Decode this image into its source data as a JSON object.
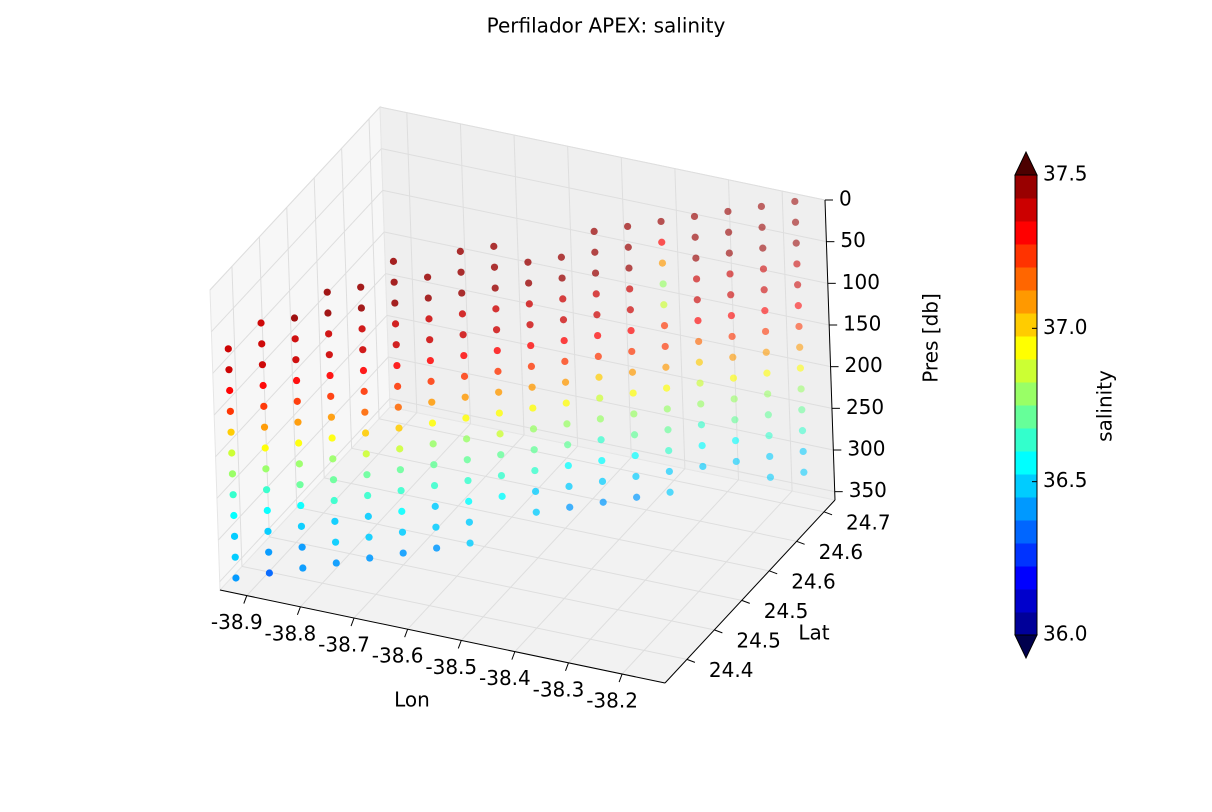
{
  "chart_data": {
    "type": "scatter3d",
    "title": "Perfilador APEX: salinity",
    "x_label": "Lon",
    "y_label": "Lat",
    "z_label": "Pres [db]",
    "colorbar_label": "salinity",
    "cmap": "jet",
    "clim": [
      36.0,
      37.5
    ],
    "levels": 20,
    "xlim": [
      -38.95,
      -38.12
    ],
    "xticks": [
      -38.9,
      -38.8,
      -38.7,
      -38.6,
      -38.5,
      -38.4,
      -38.3,
      -38.2
    ],
    "ylim": [
      24.36,
      24.67
    ],
    "yticks": [
      24.4,
      {
        "value": 24.45,
        "label": "24.5"
      },
      24.5,
      {
        "value": 24.55,
        "label": "24.6"
      },
      24.6,
      {
        "value": 24.65,
        "label": "24.7"
      }
    ],
    "zlim": [
      0,
      360
    ],
    "z_inverted": true,
    "zticks": [
      0,
      50,
      100,
      150,
      200,
      250,
      300,
      350
    ],
    "cticks": [
      {
        "value": 36.0,
        "label": "36.0"
      },
      36.5,
      {
        "value": 37.0,
        "label": "37.0"
      },
      37.5
    ],
    "grid": true,
    "pressure": [
      0,
      25,
      50,
      75,
      100,
      125,
      150,
      175,
      200,
      225,
      250,
      275,
      300,
      325,
      350
    ],
    "profiles": [
      {
        "lon": -38.93,
        "lat": 24.37,
        "salinity": [
          null,
          null,
          null,
          37.4,
          37.38,
          37.3,
          37.2,
          37.05,
          36.9,
          36.75,
          36.65,
          36.55,
          36.5,
          36.45,
          36.4
        ]
      },
      {
        "lon": -38.885,
        "lat": 24.387,
        "salinity": [
          null,
          null,
          37.42,
          37.4,
          37.36,
          37.3,
          37.22,
          37.08,
          36.92,
          36.78,
          36.66,
          36.56,
          36.48,
          36.42,
          36.35
        ]
      },
      {
        "lon": -38.84,
        "lat": 24.404,
        "salinity": [
          null,
          null,
          37.43,
          37.41,
          37.37,
          37.32,
          37.25,
          37.1,
          36.95,
          36.8,
          36.68,
          36.58,
          36.5,
          36.44,
          36.4
        ]
      },
      {
        "lon": -38.795,
        "lat": 24.421,
        "salinity": [
          null,
          37.45,
          37.44,
          37.42,
          37.38,
          37.33,
          37.26,
          37.12,
          36.96,
          36.82,
          36.7,
          36.6,
          36.52,
          36.46,
          36.42
        ]
      },
      {
        "lon": -38.75,
        "lat": 24.438,
        "salinity": [
          null,
          37.45,
          37.43,
          37.41,
          37.38,
          37.33,
          37.26,
          37.14,
          36.98,
          36.84,
          36.72,
          36.6,
          36.52,
          36.45,
          36.4
        ]
      },
      {
        "lon": -38.705,
        "lat": 24.455,
        "salinity": [
          37.48,
          37.46,
          37.44,
          37.42,
          37.38,
          37.34,
          37.27,
          37.15,
          37.0,
          36.86,
          36.74,
          36.62,
          36.54,
          36.47,
          36.42
        ]
      },
      {
        "lon": -38.66,
        "lat": 24.472,
        "salinity": [
          null,
          37.46,
          37.44,
          37.41,
          37.37,
          37.32,
          37.24,
          37.1,
          36.95,
          36.82,
          36.7,
          36.6,
          36.52,
          36.46,
          36.43
        ]
      },
      {
        "lon": -38.615,
        "lat": 24.489,
        "salinity": [
          37.5,
          37.48,
          37.45,
          37.42,
          37.38,
          37.32,
          37.22,
          37.06,
          36.92,
          36.8,
          36.7,
          36.62,
          36.55,
          36.5,
          36.46
        ]
      },
      {
        "lon": -38.57,
        "lat": 24.506,
        "salinity": [
          37.5,
          37.47,
          37.44,
          37.42,
          37.39,
          37.34,
          37.26,
          37.12,
          36.96,
          36.84,
          36.72,
          36.62,
          36.55,
          null,
          null
        ]
      },
      {
        "lon": -38.525,
        "lat": 24.523,
        "salinity": [
          null,
          37.46,
          37.44,
          37.42,
          37.38,
          37.33,
          37.25,
          37.1,
          36.95,
          36.82,
          36.7,
          36.6,
          36.52,
          36.46,
          null
        ]
      },
      {
        "lon": -38.48,
        "lat": 24.54,
        "salinity": [
          null,
          37.45,
          37.43,
          37.4,
          37.36,
          37.3,
          37.2,
          37.06,
          36.92,
          36.8,
          36.68,
          36.58,
          36.5,
          36.44,
          null
        ]
      },
      {
        "lon": -38.435,
        "lat": 24.557,
        "salinity": [
          37.48,
          37.46,
          37.43,
          37.4,
          37.36,
          37.3,
          37.2,
          37.05,
          36.9,
          36.78,
          36.66,
          36.56,
          36.48,
          36.42,
          null
        ]
      },
      {
        "lon": -38.39,
        "lat": 24.574,
        "salinity": [
          37.49,
          37.47,
          37.44,
          37.41,
          37.37,
          37.31,
          37.22,
          37.08,
          36.93,
          36.8,
          36.68,
          36.58,
          36.5,
          36.44,
          null
        ]
      },
      {
        "lon": -38.345,
        "lat": 24.591,
        "salinity": [
          37.5,
          37.3,
          37.1,
          36.8,
          36.9,
          37.2,
          37.25,
          37.1,
          36.95,
          36.82,
          36.7,
          36.6,
          36.52,
          36.46,
          null
        ]
      },
      {
        "lon": -38.3,
        "lat": 24.608,
        "salinity": [
          37.49,
          37.46,
          37.43,
          37.4,
          37.35,
          37.28,
          37.18,
          37.04,
          36.9,
          36.78,
          36.66,
          36.56,
          36.48,
          null,
          null
        ]
      },
      {
        "lon": -38.255,
        "lat": 24.625,
        "salinity": [
          37.48,
          37.46,
          37.43,
          37.4,
          37.36,
          37.3,
          37.2,
          37.06,
          36.92,
          36.8,
          36.68,
          36.58,
          36.5,
          null,
          null
        ]
      },
      {
        "lon": -38.21,
        "lat": 24.642,
        "salinity": [
          37.49,
          37.46,
          37.44,
          37.41,
          37.37,
          37.31,
          37.22,
          37.08,
          36.94,
          36.82,
          36.7,
          36.6,
          36.52,
          36.46,
          null
        ]
      },
      {
        "lon": -38.165,
        "lat": 24.659,
        "salinity": [
          37.5,
          37.47,
          37.44,
          37.41,
          37.37,
          37.31,
          37.22,
          37.08,
          36.94,
          36.82,
          36.7,
          36.6,
          36.52,
          36.46,
          null
        ]
      }
    ]
  }
}
